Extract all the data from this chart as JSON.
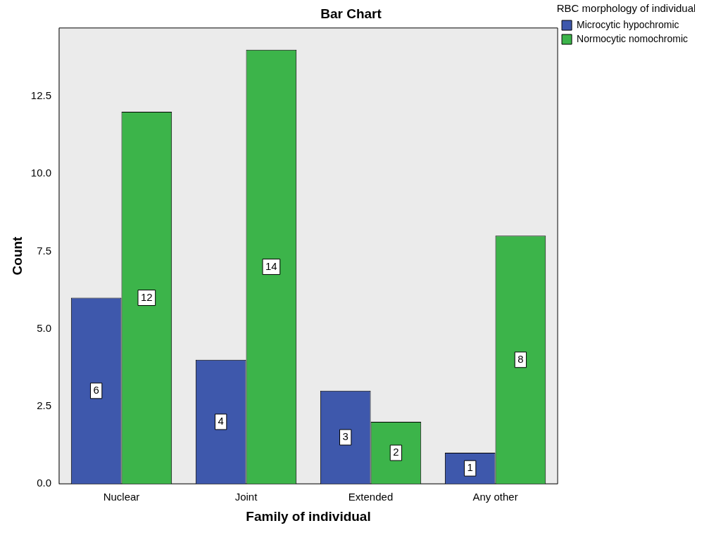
{
  "chart_data": {
    "type": "bar",
    "title": "Bar Chart",
    "xlabel": "Family of individual",
    "ylabel": "Count",
    "legend_title": "RBC morphology of individual",
    "categories": [
      "Nuclear",
      "Joint",
      "Extended",
      "Any other"
    ],
    "series": [
      {
        "name": "Microcytic hypochromic",
        "color": "#3e58ac",
        "values": [
          6,
          4,
          3,
          1
        ]
      },
      {
        "name": "Normocytic nomochromic",
        "color": "#3cb44a",
        "values": [
          12,
          14,
          2,
          8
        ]
      }
    ],
    "ylim": [
      0,
      14.7
    ],
    "yticks": [
      {
        "value": 0,
        "label": "0.0"
      },
      {
        "value": 2.5,
        "label": "2.5"
      },
      {
        "value": 5,
        "label": "5.0"
      },
      {
        "value": 7.5,
        "label": "7.5"
      },
      {
        "value": 10,
        "label": "10.0"
      },
      {
        "value": 12.5,
        "label": "12.5"
      }
    ],
    "grid": false,
    "legend": "top right",
    "data_labels": true
  }
}
